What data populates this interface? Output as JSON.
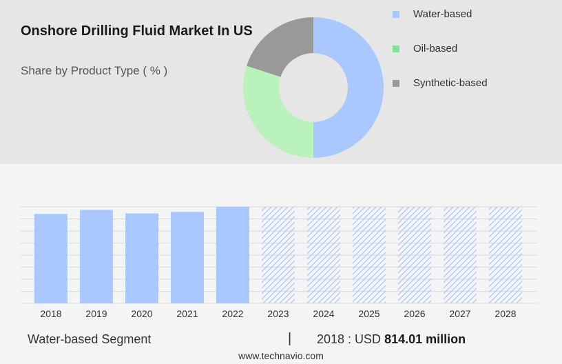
{
  "header": {
    "title": "Onshore Drilling Fluid Market In US",
    "subtitle": "Share by Product Type ( % )"
  },
  "legend": {
    "items": [
      {
        "label": "Water-based",
        "color": "#a8c8ff"
      },
      {
        "label": "Oil-based",
        "color": "#7fe39a"
      },
      {
        "label": "Synthetic-based",
        "color": "#999999"
      }
    ]
  },
  "footer": {
    "segment_label": "Water-based Segment",
    "divider": "|",
    "year_currency": "2018 : USD",
    "amount": "814.01 million"
  },
  "source": "www.technavio.com",
  "chart_data": [
    {
      "type": "pie",
      "categories": [
        "Water-based",
        "Oil-based",
        "Synthetic-based"
      ],
      "values": [
        50,
        30,
        20
      ],
      "colors": [
        "#a8c8ff",
        "#b9f2bb",
        "#999999"
      ]
    },
    {
      "type": "bar",
      "categories": [
        "2018",
        "2019",
        "2020",
        "2021",
        "2022",
        "2023",
        "2024",
        "2025",
        "2026",
        "2027",
        "2028"
      ],
      "values": [
        814.01,
        851,
        819,
        833,
        879,
        null,
        null,
        null,
        null,
        null,
        null
      ],
      "forecast_categories": [
        "2023",
        "2024",
        "2025",
        "2026",
        "2027",
        "2028"
      ],
      "ylim": [
        0,
        879
      ],
      "grid": true,
      "colors": {
        "bar": "#a8c8ff",
        "forecast_hatch": "#a8c8ff"
      }
    }
  ]
}
